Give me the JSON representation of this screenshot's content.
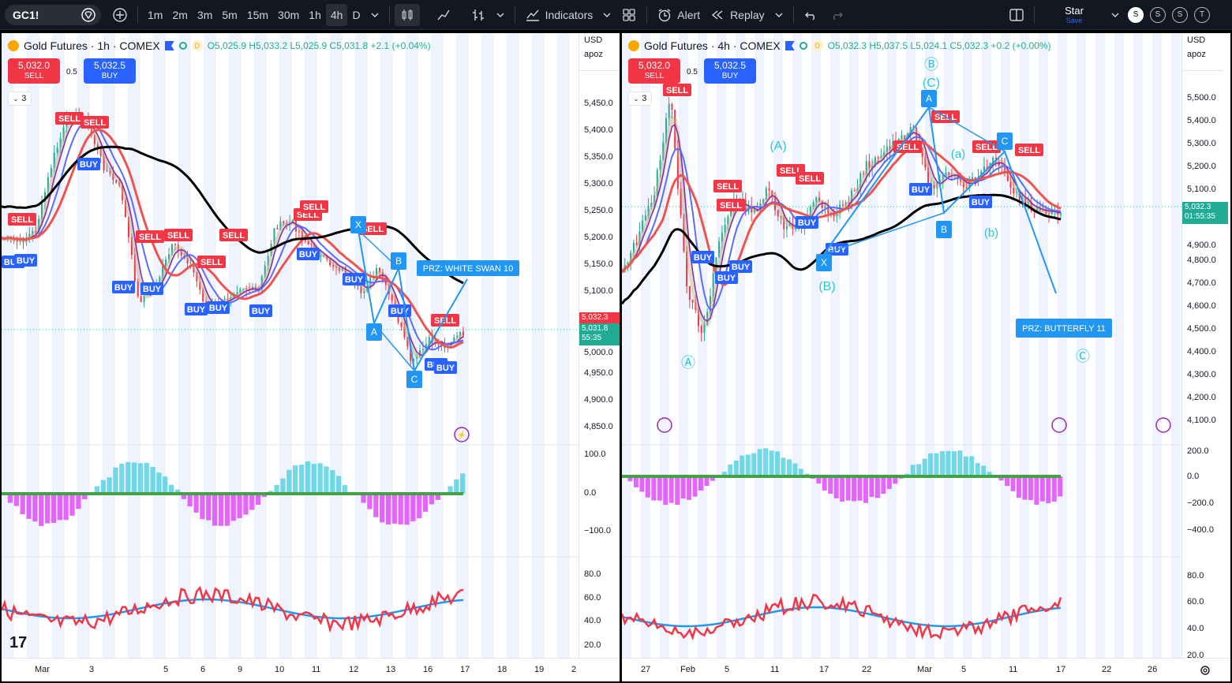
{
  "toolbar": {
    "symbol": "GC1!",
    "intervals": [
      "1m",
      "2m",
      "3m",
      "5m",
      "15m",
      "30m",
      "1h",
      "4h",
      "D"
    ],
    "active_interval": "4h",
    "indicators_label": "Indicators",
    "alert_label": "Alert",
    "replay_label": "Replay",
    "layout_name": "Star",
    "layout_sub": "Save",
    "badges": [
      "S",
      "S",
      "S",
      "T"
    ]
  },
  "left": {
    "header": {
      "title": "Gold Futures · 1h · COMEX",
      "flag_letter": "D",
      "ohlc": "O5,025.9 H5,033.2 L5,025.9 C5,031.8 +2.1 (+0.04%)"
    },
    "sell": {
      "price": "5,032.0",
      "label": "SELL"
    },
    "buy": {
      "price": "5,032.5",
      "label": "BUY"
    },
    "spread": "0.5",
    "collapse_count": "3",
    "currency": "USD",
    "scale_mode": "apoz",
    "price_ticks": [
      "5,450.0",
      "5,400.0",
      "5,350.0",
      "5,300.0",
      "5,250.0",
      "5,200.0",
      "5,150.0",
      "5,100.0",
      "5,050.0",
      "5,000.0",
      "4,950.0",
      "4,900.0",
      "4,850.0"
    ],
    "last_price_red": "5,032.3",
    "last_price_green": "5,031.8",
    "countdown": "55:35",
    "osc_ticks": [
      "100.0",
      "0.0",
      "−100.0"
    ],
    "rsi_ticks": [
      "80.0",
      "60.0",
      "40.0",
      "20.0"
    ],
    "time_labels": [
      "Mar",
      "3",
      "5",
      "6",
      "9",
      "10",
      "11",
      "12",
      "13",
      "16",
      "17",
      "18",
      "19",
      "2"
    ],
    "signals": {
      "sell": [
        "SELL",
        "SELL",
        "SELL",
        "SELL",
        "SELL",
        "SELL",
        "SELL",
        "SELL",
        "SELL",
        "SELL",
        "SELL"
      ],
      "buy": [
        "BUY",
        "BUY",
        "BUY",
        "BUY",
        "BUY",
        "BUY",
        "BUY",
        "BUY",
        "BUY",
        "BUY",
        "BUY",
        "BUY",
        "BUY"
      ]
    },
    "pattern_points": [
      "X",
      "A",
      "B",
      "C"
    ],
    "prz_label": "PRZ: WHITE SWAN 10"
  },
  "right": {
    "header": {
      "title": "Gold Futures · 4h · COMEX",
      "flag_letter": "D",
      "ohlc": "O5,032.3 H5,037.5 L5,024.1 C5,032.3 +0.2 (+0.00%)"
    },
    "sell": {
      "price": "5,032.0",
      "label": "SELL"
    },
    "buy": {
      "price": "5,032.5",
      "label": "BUY"
    },
    "spread": "0.5",
    "collapse_count": "3",
    "currency": "USD",
    "scale_mode": "apoz",
    "price_ticks": [
      "5,500.0",
      "5,400.0",
      "5,300.0",
      "5,200.0",
      "5,100.0",
      "4,900.0",
      "4,800.0",
      "4,700.0",
      "4,600.0",
      "4,500.0",
      "4,400.0",
      "4,300.0",
      "4,200.0",
      "4,100.0"
    ],
    "last_price_green": "5,032.3",
    "countdown": "01:55:35",
    "osc_ticks": [
      "200.0",
      "0.0",
      "−200.0",
      "−400.0"
    ],
    "rsi_ticks": [
      "80.0",
      "60.0",
      "40.0",
      "20.0"
    ],
    "time_labels": [
      "27",
      "Feb",
      "5",
      "11",
      "17",
      "22",
      "Mar",
      "5",
      "11",
      "17",
      "22",
      "26"
    ],
    "signals": {
      "sell": [
        "SELL",
        "SELL",
        "SELL",
        "SELL",
        "SELL",
        "SELL",
        "SELL",
        "SELL",
        "SELL"
      ],
      "buy": [
        "BUY",
        "BUY",
        "BUY",
        "BUY",
        "BUY",
        "BUY",
        "BUY"
      ]
    },
    "pattern_points": [
      "X",
      "A",
      "B",
      "C"
    ],
    "waves": [
      "Ⓐ",
      "Ⓑ",
      "(C)",
      "(A)",
      "(B)",
      "(a)",
      "(b)",
      "Ⓒ"
    ],
    "prz_label": "PRZ: BUTTERFLY 11"
  },
  "colors": {
    "up": "#22ab94",
    "down": "#f23645",
    "blue": "#2962ff",
    "pattern": "#2196f3"
  }
}
